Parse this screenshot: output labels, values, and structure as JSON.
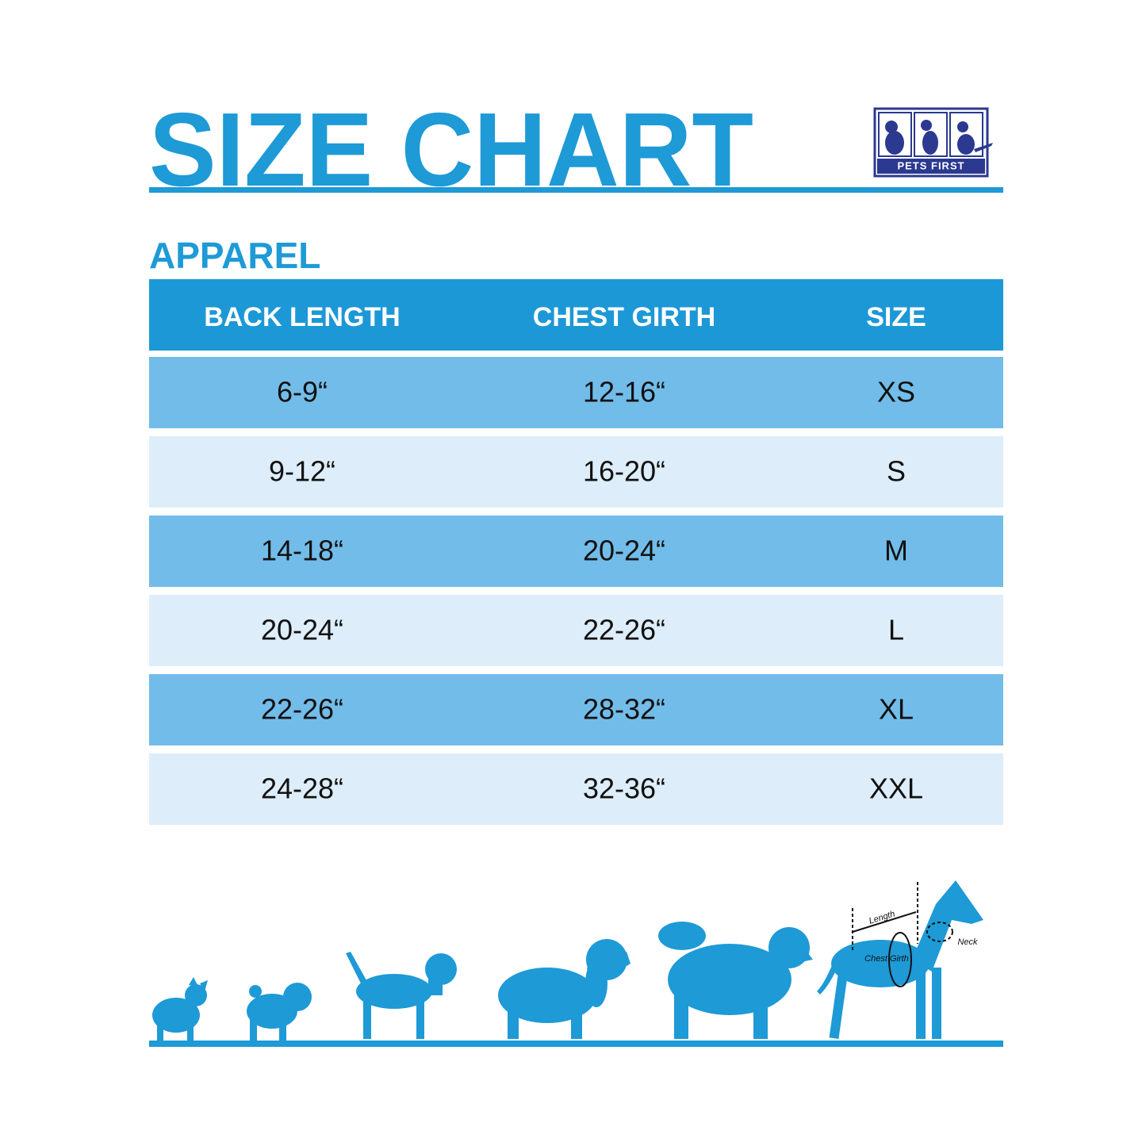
{
  "header": {
    "title": "SIZE CHART",
    "logo": "PETS FIRST"
  },
  "section": "APPAREL",
  "table": {
    "columns": [
      "BACK LENGTH",
      "CHEST GIRTH",
      "SIZE"
    ],
    "rows": [
      [
        "6-9“",
        "12-16“",
        "XS"
      ],
      [
        "9-12“",
        "16-20“",
        "S"
      ],
      [
        "14-18“",
        "20-24“",
        "M"
      ],
      [
        "20-24“",
        "22-26“",
        "L"
      ],
      [
        "22-26“",
        "28-32“",
        "XL"
      ],
      [
        "24-28“",
        "32-36“",
        "XXL"
      ]
    ]
  },
  "diagram": {
    "labels": [
      "Length",
      "Neck",
      "Chest Girth"
    ]
  }
}
